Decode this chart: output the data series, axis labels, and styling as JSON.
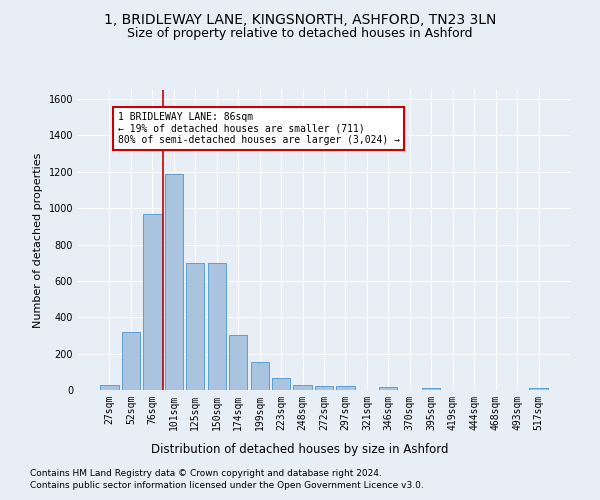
{
  "title1": "1, BRIDLEWAY LANE, KINGSNORTH, ASHFORD, TN23 3LN",
  "title2": "Size of property relative to detached houses in Ashford",
  "xlabel": "Distribution of detached houses by size in Ashford",
  "ylabel": "Number of detached properties",
  "categories": [
    "27sqm",
    "52sqm",
    "76sqm",
    "101sqm",
    "125sqm",
    "150sqm",
    "174sqm",
    "199sqm",
    "223sqm",
    "248sqm",
    "272sqm",
    "297sqm",
    "321sqm",
    "346sqm",
    "370sqm",
    "395sqm",
    "419sqm",
    "444sqm",
    "468sqm",
    "493sqm",
    "517sqm"
  ],
  "values": [
    30,
    320,
    970,
    1190,
    700,
    700,
    300,
    155,
    65,
    30,
    20,
    20,
    0,
    15,
    0,
    10,
    0,
    0,
    0,
    0,
    10
  ],
  "bar_color": "#aac4e0",
  "bar_edge_color": "#5a9fd4",
  "vline_x": 2.5,
  "vline_color": "#cc0000",
  "annotation_text": "1 BRIDLEWAY LANE: 86sqm\n← 19% of detached houses are smaller (711)\n80% of semi-detached houses are larger (3,024) →",
  "annotation_box_color": "#ffffff",
  "annotation_box_edge": "#cc0000",
  "ylim": [
    0,
    1650
  ],
  "yticks": [
    0,
    200,
    400,
    600,
    800,
    1000,
    1200,
    1400,
    1600
  ],
  "footer1": "Contains HM Land Registry data © Crown copyright and database right 2024.",
  "footer2": "Contains public sector information licensed under the Open Government Licence v3.0.",
  "bg_color": "#e8eef5",
  "plot_bg_color": "#e8eef5",
  "title1_fontsize": 10,
  "title2_fontsize": 9,
  "xlabel_fontsize": 8.5,
  "ylabel_fontsize": 8,
  "tick_fontsize": 7,
  "footer_fontsize": 6.5
}
